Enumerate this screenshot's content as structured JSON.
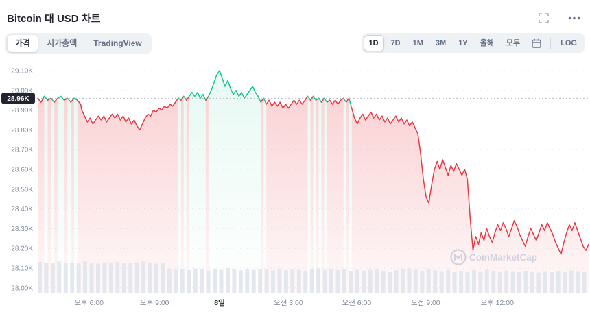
{
  "header": {
    "title": "Bitcoin 대 USD 차트"
  },
  "toolbar": {
    "left_tabs": [
      {
        "label": "가격",
        "active": true
      },
      {
        "label": "시가총액",
        "active": false
      },
      {
        "label": "TradingView",
        "active": false
      }
    ],
    "ranges": [
      {
        "label": "1D",
        "active": true
      },
      {
        "label": "7D",
        "active": false
      },
      {
        "label": "1M",
        "active": false
      },
      {
        "label": "3M",
        "active": false
      },
      {
        "label": "1Y",
        "active": false
      },
      {
        "label": "올해",
        "active": false
      },
      {
        "label": "모두",
        "active": false
      }
    ],
    "log_label": "LOG"
  },
  "chart_data": {
    "type": "line",
    "title": "Bitcoin 대 USD 차트 (1D)",
    "x_unit": "fraction of visible 1-day range",
    "y_unit": "USD (thousands)",
    "ylim": [
      27.97,
      29.15
    ],
    "open_price": 28.96,
    "open_price_label": "28.96K",
    "last_price": 28.22,
    "grid": true,
    "y_ticks": [
      {
        "label": "29.10K",
        "value": 29.1
      },
      {
        "label": "29.00K",
        "value": 29.0
      },
      {
        "label": "28.90K",
        "value": 28.9
      },
      {
        "label": "28.80K",
        "value": 28.8
      },
      {
        "label": "28.70K",
        "value": 28.7
      },
      {
        "label": "28.60K",
        "value": 28.6
      },
      {
        "label": "28.50K",
        "value": 28.5
      },
      {
        "label": "28.40K",
        "value": 28.4
      },
      {
        "label": "28.30K",
        "value": 28.3
      },
      {
        "label": "28.20K",
        "value": 28.2
      },
      {
        "label": "28.10K",
        "value": 28.1
      },
      {
        "label": "28.00K",
        "value": 28.0
      }
    ],
    "x_ticks": [
      {
        "label": "오후 6:00",
        "pos": 0.093,
        "bold": false
      },
      {
        "label": "오후 9:00",
        "pos": 0.212,
        "bold": false
      },
      {
        "label": "8일",
        "pos": 0.33,
        "bold": true
      },
      {
        "label": "오전 3:00",
        "pos": 0.455,
        "bold": false
      },
      {
        "label": "오전 6:00",
        "pos": 0.579,
        "bold": false
      },
      {
        "label": "오전 9:00",
        "pos": 0.704,
        "bold": false
      },
      {
        "label": "오후 12:00",
        "pos": 0.834,
        "bold": false
      }
    ],
    "points": [
      [
        0,
        28.96
      ],
      [
        0.006,
        28.94
      ],
      [
        0.012,
        28.97
      ],
      [
        0.018,
        28.95
      ],
      [
        0.024,
        28.96
      ],
      [
        0.03,
        28.94
      ],
      [
        0.036,
        28.96
      ],
      [
        0.042,
        28.97
      ],
      [
        0.048,
        28.95
      ],
      [
        0.054,
        28.96
      ],
      [
        0.06,
        28.94
      ],
      [
        0.066,
        28.96
      ],
      [
        0.072,
        28.95
      ],
      [
        0.078,
        28.93
      ],
      [
        0.08,
        28.9
      ],
      [
        0.085,
        28.87
      ],
      [
        0.09,
        28.84
      ],
      [
        0.095,
        28.86
      ],
      [
        0.1,
        28.83
      ],
      [
        0.105,
        28.85
      ],
      [
        0.11,
        28.87
      ],
      [
        0.115,
        28.85
      ],
      [
        0.12,
        28.87
      ],
      [
        0.125,
        28.84
      ],
      [
        0.13,
        28.86
      ],
      [
        0.135,
        28.88
      ],
      [
        0.14,
        28.86
      ],
      [
        0.145,
        28.88
      ],
      [
        0.15,
        28.85
      ],
      [
        0.155,
        28.87
      ],
      [
        0.16,
        28.84
      ],
      [
        0.165,
        28.86
      ],
      [
        0.17,
        28.83
      ],
      [
        0.175,
        28.85
      ],
      [
        0.18,
        28.82
      ],
      [
        0.185,
        28.8
      ],
      [
        0.19,
        28.83
      ],
      [
        0.195,
        28.86
      ],
      [
        0.2,
        28.88
      ],
      [
        0.205,
        28.87
      ],
      [
        0.21,
        28.9
      ],
      [
        0.215,
        28.89
      ],
      [
        0.22,
        28.91
      ],
      [
        0.225,
        28.9
      ],
      [
        0.23,
        28.92
      ],
      [
        0.235,
        28.91
      ],
      [
        0.24,
        28.93
      ],
      [
        0.245,
        28.92
      ],
      [
        0.25,
        28.94
      ],
      [
        0.255,
        28.96
      ],
      [
        0.26,
        28.95
      ],
      [
        0.265,
        28.97
      ],
      [
        0.27,
        28.95
      ],
      [
        0.275,
        28.97
      ],
      [
        0.28,
        28.99
      ],
      [
        0.285,
        28.97
      ],
      [
        0.29,
        28.99
      ],
      [
        0.295,
        28.96
      ],
      [
        0.3,
        28.98
      ],
      [
        0.305,
        28.95
      ],
      [
        0.31,
        28.97
      ],
      [
        0.315,
        29.0
      ],
      [
        0.32,
        29.04
      ],
      [
        0.325,
        29.08
      ],
      [
        0.33,
        29.1
      ],
      [
        0.335,
        29.06
      ],
      [
        0.34,
        29.02
      ],
      [
        0.345,
        29.05
      ],
      [
        0.35,
        29.01
      ],
      [
        0.355,
        28.98
      ],
      [
        0.36,
        29.0
      ],
      [
        0.365,
        28.97
      ],
      [
        0.37,
        28.99
      ],
      [
        0.375,
        28.96
      ],
      [
        0.38,
        28.98
      ],
      [
        0.385,
        29.0
      ],
      [
        0.39,
        29.02
      ],
      [
        0.395,
        28.99
      ],
      [
        0.4,
        28.97
      ],
      [
        0.405,
        28.94
      ],
      [
        0.41,
        28.96
      ],
      [
        0.415,
        28.93
      ],
      [
        0.42,
        28.95
      ],
      [
        0.425,
        28.92
      ],
      [
        0.43,
        28.94
      ],
      [
        0.435,
        28.92
      ],
      [
        0.44,
        28.94
      ],
      [
        0.445,
        28.91
      ],
      [
        0.45,
        28.93
      ],
      [
        0.455,
        28.91
      ],
      [
        0.46,
        28.93
      ],
      [
        0.465,
        28.95
      ],
      [
        0.47,
        28.93
      ],
      [
        0.475,
        28.95
      ],
      [
        0.48,
        28.93
      ],
      [
        0.485,
        28.95
      ],
      [
        0.49,
        28.97
      ],
      [
        0.495,
        28.95
      ],
      [
        0.5,
        28.97
      ],
      [
        0.505,
        28.95
      ],
      [
        0.51,
        28.96
      ],
      [
        0.515,
        28.94
      ],
      [
        0.52,
        28.96
      ],
      [
        0.525,
        28.94
      ],
      [
        0.53,
        28.95
      ],
      [
        0.535,
        28.93
      ],
      [
        0.54,
        28.95
      ],
      [
        0.545,
        28.93
      ],
      [
        0.55,
        28.95
      ],
      [
        0.555,
        28.96
      ],
      [
        0.56,
        28.94
      ],
      [
        0.565,
        28.96
      ],
      [
        0.57,
        28.91
      ],
      [
        0.575,
        28.86
      ],
      [
        0.58,
        28.83
      ],
      [
        0.585,
        28.86
      ],
      [
        0.59,
        28.88
      ],
      [
        0.595,
        28.85
      ],
      [
        0.6,
        28.87
      ],
      [
        0.605,
        28.89
      ],
      [
        0.61,
        28.86
      ],
      [
        0.615,
        28.88
      ],
      [
        0.62,
        28.85
      ],
      [
        0.625,
        28.87
      ],
      [
        0.63,
        28.84
      ],
      [
        0.635,
        28.86
      ],
      [
        0.64,
        28.83
      ],
      [
        0.645,
        28.85
      ],
      [
        0.65,
        28.87
      ],
      [
        0.655,
        28.84
      ],
      [
        0.66,
        28.86
      ],
      [
        0.665,
        28.83
      ],
      [
        0.67,
        28.85
      ],
      [
        0.675,
        28.82
      ],
      [
        0.68,
        28.84
      ],
      [
        0.685,
        28.81
      ],
      [
        0.69,
        28.78
      ],
      [
        0.695,
        28.68
      ],
      [
        0.7,
        28.55
      ],
      [
        0.705,
        28.46
      ],
      [
        0.71,
        28.43
      ],
      [
        0.715,
        28.52
      ],
      [
        0.72,
        28.6
      ],
      [
        0.725,
        28.64
      ],
      [
        0.73,
        28.6
      ],
      [
        0.735,
        28.65
      ],
      [
        0.74,
        28.61
      ],
      [
        0.745,
        28.57
      ],
      [
        0.75,
        28.62
      ],
      [
        0.755,
        28.59
      ],
      [
        0.76,
        28.63
      ],
      [
        0.765,
        28.6
      ],
      [
        0.77,
        28.57
      ],
      [
        0.775,
        28.6
      ],
      [
        0.78,
        28.55
      ],
      [
        0.785,
        28.35
      ],
      [
        0.79,
        28.19
      ],
      [
        0.795,
        28.26
      ],
      [
        0.8,
        28.22
      ],
      [
        0.805,
        28.28
      ],
      [
        0.81,
        28.24
      ],
      [
        0.815,
        28.3
      ],
      [
        0.82,
        28.26
      ],
      [
        0.825,
        28.23
      ],
      [
        0.83,
        28.28
      ],
      [
        0.835,
        28.32
      ],
      [
        0.84,
        28.29
      ],
      [
        0.845,
        28.33
      ],
      [
        0.85,
        28.3
      ],
      [
        0.855,
        28.26
      ],
      [
        0.86,
        28.3
      ],
      [
        0.865,
        28.34
      ],
      [
        0.87,
        28.31
      ],
      [
        0.875,
        28.27
      ],
      [
        0.88,
        28.24
      ],
      [
        0.885,
        28.21
      ],
      [
        0.89,
        28.26
      ],
      [
        0.895,
        28.3
      ],
      [
        0.9,
        28.27
      ],
      [
        0.905,
        28.24
      ],
      [
        0.91,
        28.28
      ],
      [
        0.915,
        28.32
      ],
      [
        0.92,
        28.29
      ],
      [
        0.925,
        28.33
      ],
      [
        0.93,
        28.3
      ],
      [
        0.935,
        28.27
      ],
      [
        0.94,
        28.23
      ],
      [
        0.945,
        28.2
      ],
      [
        0.95,
        28.17
      ],
      [
        0.955,
        28.23
      ],
      [
        0.96,
        28.28
      ],
      [
        0.965,
        28.32
      ],
      [
        0.97,
        28.29
      ],
      [
        0.975,
        28.33
      ],
      [
        0.98,
        28.29
      ],
      [
        0.985,
        28.25
      ],
      [
        0.99,
        28.21
      ],
      [
        0.995,
        28.19
      ],
      [
        1,
        28.22
      ]
    ],
    "volume": [
      0.92,
      0.88,
      0.9,
      0.93,
      0.89,
      0.91,
      0.9,
      0.94,
      0.9,
      0.87,
      0.91,
      0.89,
      0.92,
      0.9,
      0.88,
      0.91,
      0.93,
      0.89,
      0.87,
      0.9,
      0.72,
      0.69,
      0.71,
      0.68,
      0.73,
      0.7,
      0.67,
      0.72,
      0.69,
      0.74,
      0.7,
      0.68,
      0.71,
      0.69,
      0.72,
      0.7,
      0.67,
      0.7,
      0.68,
      0.72,
      0.69,
      0.66,
      0.7,
      0.73,
      0.69,
      0.71,
      0.68,
      0.7,
      0.66,
      0.69,
      0.67,
      0.69,
      0.71,
      0.66,
      0.64,
      0.68,
      0.71,
      0.73,
      0.69,
      0.66,
      0.7,
      0.68,
      0.65,
      0.69,
      0.63,
      0.66,
      0.64,
      0.68,
      0.65,
      0.69,
      0.66,
      0.64,
      0.67,
      0.65,
      0.62,
      0.66,
      0.64,
      0.61,
      0.65,
      0.63,
      0.66,
      0.64,
      0.67,
      0.65,
      0.62
    ],
    "colors": {
      "up": "#16c784",
      "down": "#ea3943",
      "grid": "#e8ebf0",
      "reference_line": "#b6bdca",
      "axis_text": "#808a9d",
      "axis_text_bold": "#222531",
      "badge_bg": "#222531",
      "badge_text": "#ffffff",
      "volume_bar": "#e4e7ed",
      "watermark": "#c7cdda"
    },
    "watermark": "CoinMarketCap",
    "legend": []
  }
}
